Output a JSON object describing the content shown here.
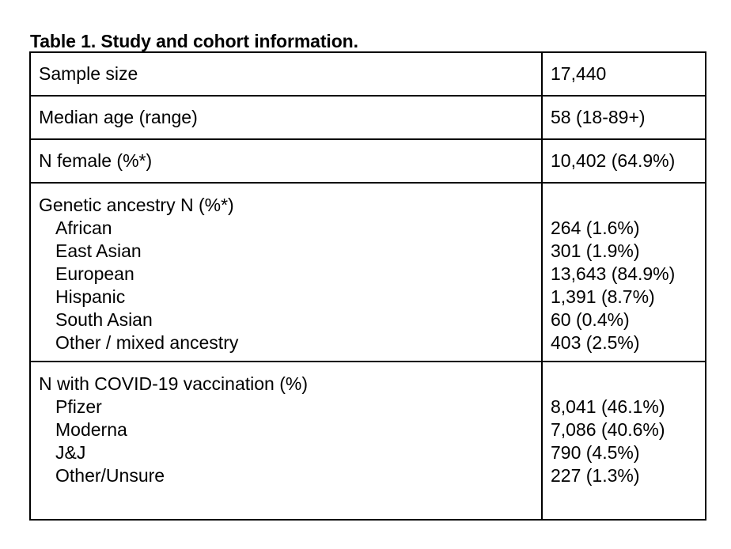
{
  "caption": "Table 1. Study and cohort information.",
  "rows": {
    "sample_size": {
      "label": "Sample size",
      "value": "17,440"
    },
    "median_age": {
      "label": "Median age (range)",
      "value": "58 (18-89+)"
    },
    "n_female": {
      "label": "N female (%*)",
      "value": "10,402 (64.9%)"
    },
    "ancestry": {
      "label": "Genetic ancestry N (%*)",
      "items": [
        {
          "label": "African",
          "value": "264 (1.6%)"
        },
        {
          "label": "East Asian",
          "value": "301 (1.9%)"
        },
        {
          "label": "European",
          "value": "13,643 (84.9%)"
        },
        {
          "label": "Hispanic",
          "value": "1,391 (8.7%)"
        },
        {
          "label": "South Asian",
          "value": "60 (0.4%)"
        },
        {
          "label": "Other / mixed ancestry",
          "value": "403 (2.5%)"
        }
      ]
    },
    "vaccination": {
      "label": "N with COVID-19 vaccination (%)",
      "items": [
        {
          "label": "Pfizer",
          "value": "8,041 (46.1%)"
        },
        {
          "label": "Moderna",
          "value": "7,086 (40.6%)"
        },
        {
          "label": "J&J",
          "value": "790 (4.5%)"
        },
        {
          "label": "Other/Unsure",
          "value": "227 (1.3%)"
        }
      ]
    }
  }
}
